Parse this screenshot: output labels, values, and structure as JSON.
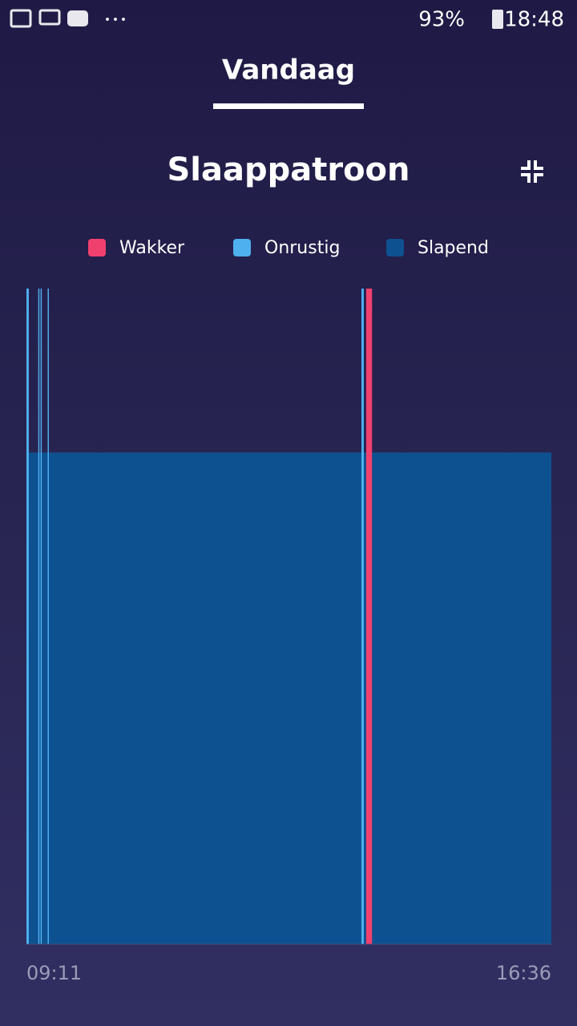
{
  "status_bar": {
    "battery": "93%",
    "time": "18:48"
  },
  "tab": {
    "label": "Vandaag"
  },
  "chart_data": {
    "type": "timeline",
    "title": "Slaappatroon",
    "series": [
      {
        "name": "Slapend",
        "color": "#0e5190",
        "start": [
          2,
          286,
          293
        ],
        "end": [
          284,
          288,
          445
        ],
        "values": [
          0.75,
          0.75,
          0.75
        ]
      },
      {
        "name": "Onrustig",
        "color": "#4eb0ee",
        "start": [
          0,
          10,
          12,
          18,
          284
        ],
        "end": [
          2,
          11,
          13,
          19,
          286
        ],
        "values": [
          1,
          1,
          1,
          1,
          1
        ]
      },
      {
        "name": "Wakker",
        "color": "#f0406e",
        "start": [
          288
        ],
        "end": [
          293
        ],
        "values": [
          1
        ]
      }
    ],
    "legend_order": [
      "Wakker",
      "Onrustig",
      "Slapend"
    ],
    "xlim": [
      0,
      445
    ],
    "xticks": [
      {
        "value": 0,
        "label": "09:11"
      },
      {
        "value": 445,
        "label": "16:36"
      }
    ],
    "ylim": [
      0,
      1
    ]
  }
}
